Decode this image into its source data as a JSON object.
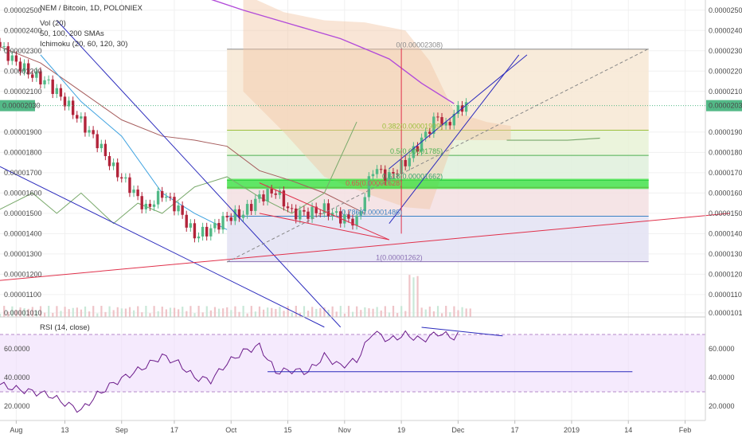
{
  "header": {
    "title": "NEM / Bitcoin, 1D, POLONIEX",
    "indicators": [
      "Vol (20)",
      "50, 100, 200 SMAs",
      "Ichimoku (20, 60, 120, 30)"
    ]
  },
  "rsi": {
    "title": "RSI (14, close)",
    "ticks": [
      "60.0000",
      "40.0000",
      "20.0000"
    ],
    "tick_values": [
      60,
      40,
      20
    ],
    "upper_band": 70,
    "lower_band": 30
  },
  "price_axis": {
    "ticks": [
      "0.00002500",
      "0.00002400",
      "0.00002300",
      "0.00002200",
      "0.00002100",
      "0.00001900",
      "0.00001800",
      "0.00001700",
      "0.00001600",
      "0.00001500",
      "0.00001400",
      "0.00001300",
      "0.00001200",
      "0.00001100",
      "0.00001010"
    ],
    "tick_values": [
      2.5e-05,
      2.4e-05,
      2.3e-05,
      2.2e-05,
      2.1e-05,
      1.9e-05,
      1.8e-05,
      1.7e-05,
      1.6e-05,
      1.5e-05,
      1.4e-05,
      1.3e-05,
      1.2e-05,
      1.1e-05,
      1.01e-05
    ],
    "current_label": "0.00002030",
    "current_value": 2.03e-05,
    "range": [
      9.9e-06,
      2.55e-05
    ]
  },
  "time_axis": {
    "labels": [
      "Aug",
      "13",
      "Sep",
      "17",
      "Oct",
      "15",
      "Nov",
      "19",
      "Dec",
      "17",
      "2019",
      "14",
      "Feb"
    ],
    "label_days": [
      4,
      16,
      30,
      43,
      57,
      71,
      85,
      99,
      113,
      127,
      141,
      155,
      169
    ],
    "range_days": [
      0,
      174
    ]
  },
  "fib_levels": [
    {
      "label": "0(0.00002308)",
      "value": 2.308e-05,
      "color": "#8a8a8a"
    },
    {
      "label": "0.382(0.00001909)",
      "value": 1.909e-05,
      "color": "#9bbf3b"
    },
    {
      "label": "0.5(0.00001785)",
      "value": 1.785e-05,
      "color": "#4caf50"
    },
    {
      "label": "0.618(0.00001662)",
      "value": 1.662e-05,
      "color": "#36a36a"
    },
    {
      "label": "0.65(0.00001628)",
      "value": 1.628e-05,
      "color": "#d9534f"
    },
    {
      "label": "0.786(0.00001486)",
      "value": 1.486e-05,
      "color": "#3b82c4"
    },
    {
      "label": "1(0.00001262)",
      "value": 1.262e-05,
      "color": "#8a6fb3"
    }
  ],
  "colors": {
    "up": "#53b987",
    "down": "#b2243a",
    "rsi_line": "#6b1a8a",
    "rsi_band_fill": "#efdcfb",
    "channel": "#2b2bbd",
    "trend_red": "#e0304a",
    "sma_purple": "#b24bd9",
    "cloud_red": "#e37b7b",
    "kijun_brown": "#a65d5d",
    "tenkan_blue": "#3ea2e0",
    "chikou_green": "#79a96b",
    "highlight": "#34e23a"
  },
  "chart_data": [
    {
      "type": "candlestick",
      "title": "NEM / Bitcoin, 1D, POLONIEX",
      "x_unit": "days since Jul 27",
      "ylim": [
        9.9e-06,
        2.55e-05
      ],
      "series": [
        {
          "name": "close",
          "x": [
            0,
            4,
            8,
            12,
            16,
            20,
            24,
            28,
            32,
            36,
            40,
            44,
            48,
            52,
            56,
            60,
            64,
            68,
            72,
            76,
            80,
            84,
            88,
            92,
            96,
            100,
            104,
            108,
            110,
            112,
            114
          ],
          "values": [
            2.32e-05,
            2.24e-05,
            2.18e-05,
            2.14e-05,
            2.05e-05,
            1.95e-05,
            1.85e-05,
            1.72e-05,
            1.63e-05,
            1.52e-05,
            1.6e-05,
            1.52e-05,
            1.39e-05,
            1.42e-05,
            1.48e-05,
            1.5e-05,
            1.58e-05,
            1.61e-05,
            1.5e-05,
            1.5e-05,
            1.52e-05,
            1.48e-05,
            1.46e-05,
            1.72e-05,
            1.68e-05,
            1.75e-05,
            1.86e-05,
            1.98e-05,
            1.92e-05,
            1.99e-05,
            2.03e-05
          ]
        }
      ]
    },
    {
      "type": "line",
      "title": "RSI (14, close)",
      "ylim": [
        10,
        80
      ],
      "series": [
        {
          "name": "RSI (14, close)",
          "x": [
            0,
            4,
            8,
            12,
            16,
            20,
            24,
            28,
            32,
            36,
            40,
            44,
            48,
            52,
            56,
            60,
            64,
            68,
            72,
            76,
            80,
            84,
            88,
            92,
            96,
            100,
            104,
            108,
            112,
            114
          ],
          "values": [
            35,
            32,
            30,
            28,
            22,
            17,
            28,
            36,
            42,
            48,
            55,
            50,
            40,
            38,
            50,
            58,
            62,
            44,
            45,
            44,
            55,
            48,
            52,
            72,
            66,
            70,
            66,
            71,
            68,
            71
          ]
        }
      ]
    }
  ]
}
